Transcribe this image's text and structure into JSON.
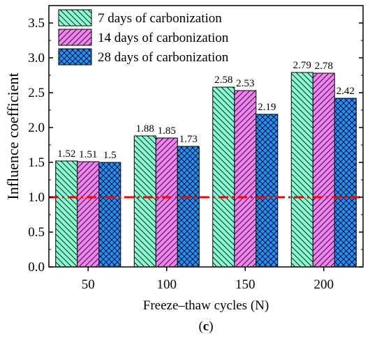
{
  "chart_data": {
    "type": "bar",
    "title": "",
    "xlabel": "Freeze–thaw cycles (N)",
    "ylabel": "Influence coefficient",
    "categories": [
      "50",
      "100",
      "150",
      "200"
    ],
    "series": [
      {
        "name": "7 days of carbonization",
        "values": [
          1.52,
          1.88,
          2.58,
          2.79
        ],
        "labels": [
          "1.52",
          "1.88",
          "2.58",
          "2.79"
        ],
        "color": "#7fffd4",
        "pattern": "backslash-hatch"
      },
      {
        "name": "14 days of carbonization",
        "values": [
          1.51,
          1.85,
          2.53,
          2.78
        ],
        "labels": [
          "1.51",
          "1.85",
          "2.53",
          "2.78"
        ],
        "color": "#ee82ee",
        "pattern": "slash-hatch"
      },
      {
        "name": "28 days of carbonization",
        "values": [
          1.5,
          1.73,
          2.19,
          2.42
        ],
        "labels": [
          "1.5",
          "1.73",
          "2.19",
          "2.42"
        ],
        "color": "#1e90ff",
        "pattern": "cross-hatch"
      }
    ],
    "ylim": [
      0,
      3.75
    ],
    "yticks": [
      "0.0",
      "0.5",
      "1.0",
      "1.5",
      "2.0",
      "2.5",
      "3.0",
      "3.5"
    ],
    "reference_line": {
      "y": 1.0,
      "color": "#ff0000",
      "style": "dash-dot"
    },
    "legend": "top-left",
    "grid": false
  },
  "caption": {
    "open": "(",
    "letter": "c",
    "close": ")"
  }
}
